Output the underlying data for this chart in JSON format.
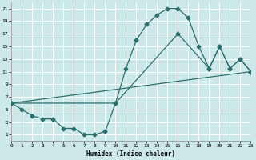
{
  "xlabel": "Humidex (Indice chaleur)",
  "bg_color": "#cde8e8",
  "grid_color": "#ffffff",
  "line_color": "#2a6e6e",
  "xlim": [
    0,
    23
  ],
  "ylim": [
    0,
    22
  ],
  "xticks": [
    0,
    1,
    2,
    3,
    4,
    5,
    6,
    7,
    8,
    9,
    10,
    11,
    12,
    13,
    14,
    15,
    16,
    17,
    18,
    19,
    20,
    21,
    22,
    23
  ],
  "yticks": [
    1,
    3,
    5,
    7,
    9,
    11,
    13,
    15,
    17,
    19,
    21
  ],
  "curve1_x": [
    0,
    1,
    2,
    3,
    4,
    5,
    6,
    7,
    8,
    9,
    10,
    11,
    12,
    13,
    14,
    15,
    16,
    17,
    18,
    19,
    20,
    21,
    22,
    23
  ],
  "curve1_y": [
    6,
    5,
    4,
    3.5,
    3.5,
    2,
    2,
    1,
    1,
    1.5,
    6,
    11.5,
    16,
    18.5,
    20,
    21,
    21,
    19.5,
    15,
    11.5,
    15,
    11.5,
    13,
    11
  ],
  "curve2_x": [
    0,
    10,
    16,
    19,
    20,
    21,
    22,
    23
  ],
  "curve2_y": [
    6,
    6,
    17,
    11.5,
    15,
    11.5,
    13,
    11
  ],
  "curve3_x": [
    0,
    23
  ],
  "curve3_y": [
    6,
    11
  ],
  "markersize": 2.5,
  "linewidth": 0.9
}
